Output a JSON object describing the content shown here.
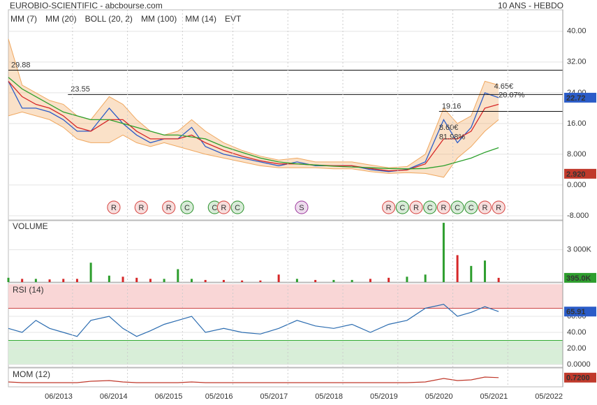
{
  "header": {
    "title": "EUROBIO-SCIENTIFIC - abcbourse.com",
    "period": "10 ANS - HEBDO"
  },
  "chart_data": [
    {
      "type": "line",
      "x": [
        "04/2012",
        "07/2012",
        "10/2012",
        "01/2013",
        "04/2013",
        "07/2013",
        "10/2013",
        "02/2014",
        "05/2014",
        "08/2014",
        "11/2014",
        "02/2015",
        "05/2015",
        "08/2015",
        "11/2015",
        "03/2016",
        "07/2016",
        "11/2016",
        "03/2017",
        "07/2017",
        "11/2017",
        "03/2018",
        "07/2018",
        "11/2018",
        "03/2019",
        "07/2019",
        "11/2019",
        "03/2020",
        "06/2020",
        "09/2020",
        "12/2020",
        "03/2021"
      ],
      "xlim": [
        "04/2012",
        "05/2022"
      ],
      "xticks": [
        "06/2013",
        "06/2014",
        "06/2015",
        "05/2016",
        "05/2017",
        "05/2018",
        "05/2019",
        "05/2020",
        "05/2021",
        "05/2022"
      ],
      "ylim": [
        -9.1,
        45.6
      ],
      "yticks": [
        {
          "value": 40,
          "label": "40.00"
        },
        {
          "value": 32,
          "label": "32.00"
        },
        {
          "value": 24,
          "label": "24.00"
        },
        {
          "value": 16,
          "label": "16.00"
        },
        {
          "value": 8,
          "label": "8.000"
        },
        {
          "value": 0,
          "label": "0.000"
        },
        {
          "value": -8,
          "label": "-8.000"
        }
      ],
      "series": [
        {
          "name": "MM (7)",
          "color": "#2b5cc8",
          "values": [
            27,
            20,
            20,
            19,
            17,
            14,
            14,
            20,
            16,
            13,
            11,
            12,
            12,
            15,
            10,
            8,
            7,
            6,
            5,
            6,
            5,
            5,
            5,
            4,
            3.5,
            4,
            6,
            17,
            11,
            15,
            24,
            22.72
          ]
        },
        {
          "name": "MM (20)",
          "color": "#d62728",
          "values": [
            27,
            23,
            21,
            20,
            18,
            15,
            14,
            17,
            17,
            14,
            12,
            12,
            12,
            13,
            11,
            9,
            7.5,
            6.3,
            5.5,
            5.5,
            5.2,
            5,
            5,
            4.3,
            3.7,
            3.9,
            5.5,
            12,
            12,
            14,
            20,
            21
          ]
        },
        {
          "name": "BOLL (20, 2)",
          "color": "#f0a860",
          "upper": [
            38,
            26,
            24,
            22,
            21,
            18,
            17,
            23,
            21,
            17,
            14,
            13,
            14,
            17,
            14,
            11,
            9,
            7.5,
            6.5,
            7,
            6,
            6,
            6,
            5.2,
            4.5,
            4.8,
            8,
            20,
            16,
            18,
            27,
            26
          ],
          "lower": [
            18,
            19,
            18,
            17,
            15,
            12,
            11,
            11,
            13,
            11,
            10,
            11,
            10,
            9,
            8,
            7,
            6,
            5,
            4.5,
            4.5,
            4.5,
            4.2,
            4.2,
            3.5,
            3,
            3.2,
            3,
            2,
            7,
            10,
            14,
            17
          ]
        },
        {
          "name": "MM (100)",
          "color": "#2ca02c",
          "values": [
            28,
            25,
            23,
            21,
            19,
            18,
            17,
            17,
            16,
            15,
            14,
            13,
            13,
            12.5,
            12,
            10,
            8.5,
            7,
            6,
            5.5,
            5.2,
            4.9,
            4.7,
            4.5,
            4.3,
            4.2,
            4.3,
            5,
            6,
            7,
            8.5,
            9.7
          ]
        }
      ],
      "extra_legend": [
        {
          "name": "MM (14)",
          "color": "#222222"
        },
        {
          "name": "EVT",
          "color": "#222222"
        }
      ],
      "levels": [
        {
          "value": 29.88,
          "start": "04/2012"
        },
        {
          "value": 23.55,
          "start": "05/2013"
        },
        {
          "value": 19.16,
          "start": "02/2020"
        }
      ],
      "annotations": [
        {
          "text": "4.65€",
          "x": "02/2021",
          "y": 25.6
        },
        {
          "text": "20.07%",
          "x": "03/2021",
          "y": 23.3
        },
        {
          "text": "8.60€",
          "x": "02/2020",
          "y": 14.9
        },
        {
          "text": "81.98%",
          "x": "02/2020",
          "y": 12.4
        }
      ],
      "events": [
        {
          "label": "R",
          "x": "03/2014"
        },
        {
          "label": "R",
          "x": "09/2014"
        },
        {
          "label": "R",
          "x": "03/2015"
        },
        {
          "label": "C",
          "x": "07/2015"
        },
        {
          "label": "C",
          "x": "01/2016"
        },
        {
          "label": "R",
          "x": "03/2016"
        },
        {
          "label": "C",
          "x": "06/2016"
        },
        {
          "label": "S",
          "x": "08/2017"
        },
        {
          "label": "R",
          "x": "03/2019"
        },
        {
          "label": "C",
          "x": "06/2019"
        },
        {
          "label": "R",
          "x": "09/2019"
        },
        {
          "label": "C",
          "x": "12/2019"
        },
        {
          "label": "R",
          "x": "03/2020"
        },
        {
          "label": "C",
          "x": "06/2020"
        },
        {
          "label": "C",
          "x": "09/2020"
        },
        {
          "label": "R",
          "x": "12/2020"
        },
        {
          "label": "R",
          "x": "03/2021"
        }
      ],
      "event_colors": {
        "R": "#d9534f",
        "C": "#3c9a3c",
        "S": "#a64ca6"
      },
      "last_value": {
        "value": 22.72,
        "color": "#2b5cc8"
      },
      "marker_value": {
        "value": 2.92,
        "label": "2.920",
        "color": "#c0392b"
      }
    },
    {
      "type": "bar",
      "title": "VOLUME",
      "title_color": "#2e9e2e",
      "values": [
        400,
        300,
        300,
        250,
        300,
        300,
        1800,
        600,
        500,
        400,
        300,
        300,
        1200,
        300,
        200,
        200,
        150,
        150,
        700,
        300,
        200,
        200,
        200,
        300,
        400,
        500,
        700,
        5500,
        2500,
        1500,
        2000,
        395
      ],
      "ylim": [
        0,
        5700
      ],
      "yticks": [
        {
          "value": 3000,
          "label": "3 000K"
        }
      ],
      "up_color": "#2e9e2e",
      "down_color": "#d62728",
      "last_value": {
        "value": 395,
        "label": "395.0K",
        "color": "#2e9e2e"
      }
    },
    {
      "type": "line",
      "title": "RSI (14)",
      "title_color": "#2b5cc8",
      "color": "#2b6cb0",
      "values": [
        45,
        40,
        55,
        45,
        40,
        35,
        55,
        60,
        45,
        35,
        42,
        50,
        55,
        60,
        40,
        45,
        40,
        38,
        45,
        55,
        48,
        45,
        50,
        40,
        50,
        55,
        70,
        75,
        60,
        65,
        72,
        65.91
      ],
      "ylim": [
        0,
        100
      ],
      "yticks": [
        {
          "value": 0,
          "label": "0.0000"
        },
        {
          "value": 20,
          "label": "20.00"
        },
        {
          "value": 40,
          "label": "40.00"
        },
        {
          "value": 60,
          "label": "60.00"
        }
      ],
      "overbought": 70,
      "oversold": 30,
      "last_value": {
        "value": 65.91,
        "color": "#2b5cc8"
      }
    },
    {
      "type": "line",
      "title": "MOM (12)",
      "title_color": "#d62728",
      "color": "#c0392b",
      "values": [
        0.1,
        0,
        0,
        0,
        0,
        0,
        0.2,
        0.3,
        0.1,
        0,
        0,
        0,
        0,
        0.1,
        0,
        0,
        0,
        0,
        0,
        0,
        0,
        0,
        0,
        0,
        0,
        0,
        0.1,
        0.6,
        0.3,
        0.4,
        0.8,
        0.72
      ],
      "ylim": [
        -0.5,
        2
      ],
      "last_value": {
        "value": 0.72,
        "label": "0.7200",
        "color": "#c0392b"
      }
    }
  ]
}
